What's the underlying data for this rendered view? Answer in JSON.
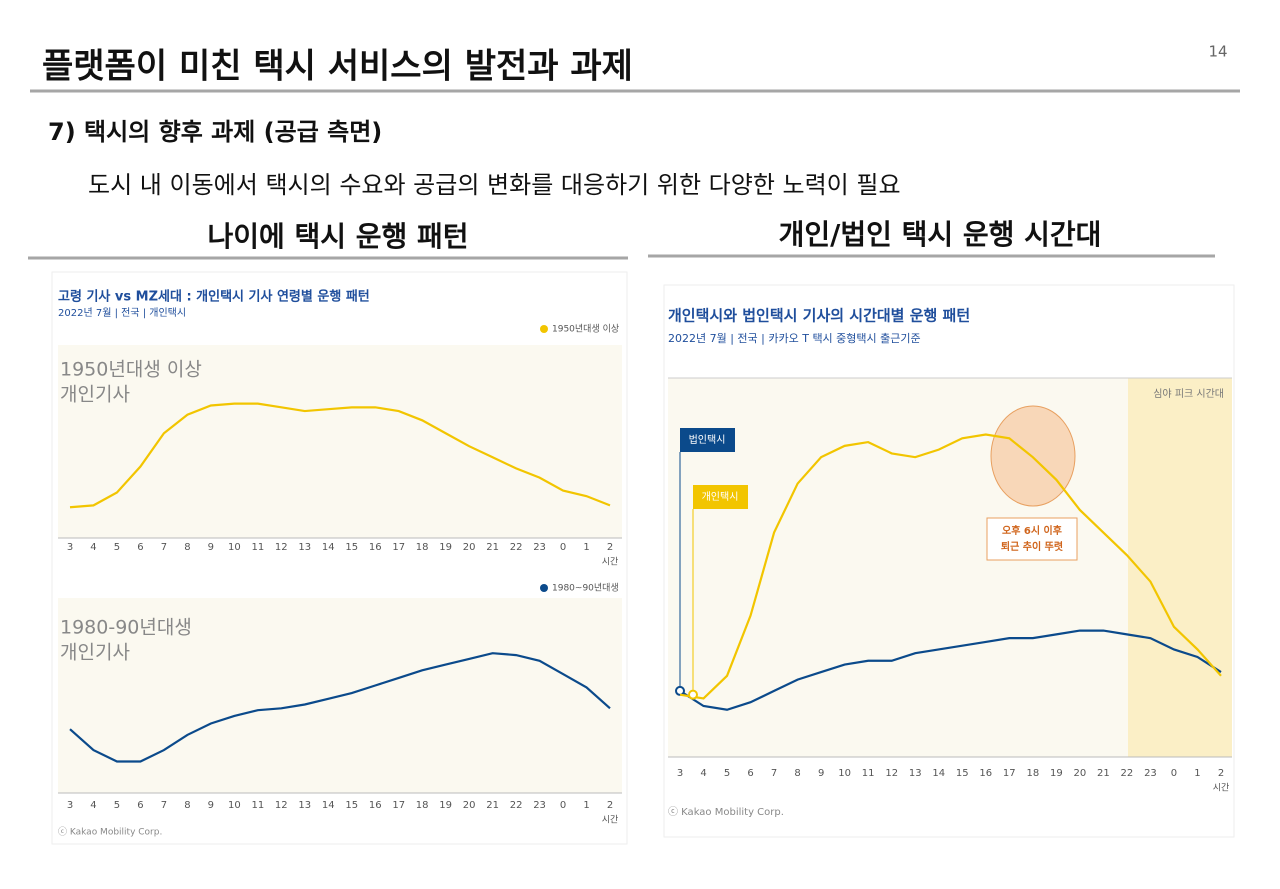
{
  "header": {
    "title": "플랫폼이 미친 택시 서비스의 발전과 과제",
    "page_number": 14,
    "section": "7) 택시의 향후 과제 (공급 측면)",
    "summary": "도시 내 이동에서 택시의 수요와 공급의 변화를 대응하기 위한 다양한 노력이 필요"
  },
  "left_panel": {
    "heading": "나이에 택시 운행 패턴",
    "title": "고령 기사 vs MZ세대 : 개인택시 기사 연령별 운행 패턴",
    "subtitle": "2022년 7월 | 전국 | 개인택시",
    "source": "ⓒ Kakao Mobility Corp."
  },
  "right_panel": {
    "heading": "개인/법인 택시 운행 시간대"
  },
  "chart_data": [
    {
      "type": "line",
      "categories": [
        "3",
        "4",
        "5",
        "6",
        "7",
        "8",
        "9",
        "10",
        "11",
        "12",
        "13",
        "14",
        "15",
        "16",
        "17",
        "18",
        "19",
        "20",
        "21",
        "22",
        "23",
        "0",
        "1",
        "2"
      ],
      "x_label": "시간",
      "ylim": [
        0,
        100
      ],
      "label_lines": [
        "1950년대생 이상",
        "개인기사"
      ],
      "series": [
        {
          "name": "1950년대생 이상",
          "color": "#f2c500",
          "values": [
            15,
            16,
            23,
            37,
            55,
            65,
            70,
            71,
            71,
            69,
            67,
            68,
            69,
            69,
            67,
            62,
            55,
            48,
            42,
            36,
            31,
            24,
            21,
            16
          ]
        }
      ]
    },
    {
      "type": "line",
      "categories": [
        "3",
        "4",
        "5",
        "6",
        "7",
        "8",
        "9",
        "10",
        "11",
        "12",
        "13",
        "14",
        "15",
        "16",
        "17",
        "18",
        "19",
        "20",
        "21",
        "22",
        "23",
        "0",
        "1",
        "2"
      ],
      "x_label": "시간",
      "ylim": [
        0,
        100
      ],
      "label_lines": [
        "1980-90년대생",
        "개인기사"
      ],
      "series": [
        {
          "name": "1980~90년대생",
          "color": "#0b4a8b",
          "values": [
            32,
            21,
            15,
            15,
            21,
            29,
            35,
            39,
            42,
            43,
            45,
            48,
            51,
            55,
            59,
            63,
            66,
            69,
            72,
            71,
            68,
            61,
            54,
            43
          ]
        }
      ]
    },
    {
      "type": "line",
      "title": "개인택시와 법인택시 기사의 시간대별 운행 패턴",
      "subtitle": "2022년 7월 | 전국 | 카카오 T 택시 중형택시 출근기준",
      "source": "ⓒ Kakao Mobility Corp.",
      "categories": [
        "3",
        "4",
        "5",
        "6",
        "7",
        "8",
        "9",
        "10",
        "11",
        "12",
        "13",
        "14",
        "15",
        "16",
        "17",
        "18",
        "19",
        "20",
        "21",
        "22",
        "23",
        "0",
        "1",
        "2"
      ],
      "x_label": "시간",
      "ylim": [
        0,
        100
      ],
      "highlight_label": "심야 피크 시간대",
      "callout": [
        "오후 6시 이후",
        "퇴근 추이 뚜렷"
      ],
      "series": [
        {
          "name": "법인택시",
          "color": "#0b4a8b",
          "values": [
            17,
            13,
            12,
            14,
            17,
            20,
            22,
            24,
            25,
            25,
            27,
            28,
            29,
            30,
            31,
            31,
            32,
            33,
            33,
            32,
            31,
            28,
            26,
            22
          ]
        },
        {
          "name": "개인택시",
          "color": "#f2c500",
          "values": [
            16,
            15,
            21,
            37,
            59,
            72,
            79,
            82,
            83,
            80,
            79,
            81,
            84,
            85,
            84,
            79,
            73,
            65,
            59,
            53,
            46,
            34,
            28,
            21
          ]
        }
      ]
    }
  ]
}
